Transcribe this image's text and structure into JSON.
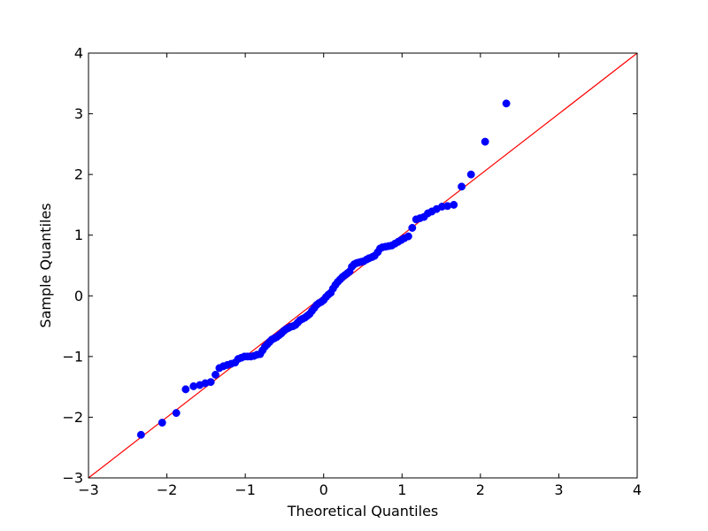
{
  "chart_data": {
    "type": "scatter",
    "title": "",
    "xlabel": "Theoretical Quantiles",
    "ylabel": "Sample Quantiles",
    "xlim": [
      -3,
      4
    ],
    "ylim": [
      -3,
      4
    ],
    "xticks": [
      -3,
      -2,
      -1,
      0,
      1,
      2,
      3,
      4
    ],
    "yticks": [
      -3,
      -2,
      -1,
      0,
      1,
      2,
      3,
      4
    ],
    "xtick_labels": [
      "−3",
      "−2",
      "−1",
      "0",
      "1",
      "2",
      "3",
      "4"
    ],
    "ytick_labels": [
      "−3",
      "−2",
      "−1",
      "0",
      "1",
      "2",
      "3",
      "4"
    ],
    "grid": false,
    "marker_color": "#0000ff",
    "line_color": "#ff0000",
    "reference_line": {
      "x": [
        -3,
        4
      ],
      "y": [
        -3,
        4
      ]
    },
    "points": [
      [
        -2.33,
        -2.29
      ],
      [
        -2.06,
        -2.09
      ],
      [
        -1.88,
        -1.93
      ],
      [
        -1.76,
        -1.54
      ],
      [
        -1.66,
        -1.49
      ],
      [
        -1.58,
        -1.47
      ],
      [
        -1.51,
        -1.44
      ],
      [
        -1.44,
        -1.42
      ],
      [
        -1.38,
        -1.3
      ],
      [
        -1.33,
        -1.19
      ],
      [
        -1.28,
        -1.16
      ],
      [
        -1.23,
        -1.14
      ],
      [
        -1.18,
        -1.12
      ],
      [
        -1.13,
        -1.1
      ],
      [
        -1.09,
        -1.04
      ],
      [
        -1.05,
        -1.02
      ],
      [
        -1.01,
        -1.0
      ],
      [
        -0.97,
        -1.0
      ],
      [
        -0.93,
        -1.0
      ],
      [
        -0.89,
        -0.99
      ],
      [
        -0.85,
        -0.97
      ],
      [
        -0.81,
        -0.96
      ],
      [
        -0.78,
        -0.9
      ],
      [
        -0.75,
        -0.84
      ],
      [
        -0.72,
        -0.8
      ],
      [
        -0.69,
        -0.76
      ],
      [
        -0.66,
        -0.72
      ],
      [
        -0.63,
        -0.7
      ],
      [
        -0.6,
        -0.68
      ],
      [
        -0.57,
        -0.65
      ],
      [
        -0.54,
        -0.62
      ],
      [
        -0.51,
        -0.58
      ],
      [
        -0.48,
        -0.55
      ],
      [
        -0.45,
        -0.53
      ],
      [
        -0.42,
        -0.51
      ],
      [
        -0.39,
        -0.5
      ],
      [
        -0.36,
        -0.48
      ],
      [
        -0.33,
        -0.44
      ],
      [
        -0.3,
        -0.4
      ],
      [
        -0.27,
        -0.38
      ],
      [
        -0.24,
        -0.36
      ],
      [
        -0.21,
        -0.33
      ],
      [
        -0.18,
        -0.3
      ],
      [
        -0.15,
        -0.25
      ],
      [
        -0.12,
        -0.2
      ],
      [
        -0.09,
        -0.15
      ],
      [
        -0.06,
        -0.12
      ],
      [
        -0.03,
        -0.1
      ],
      [
        0.0,
        -0.07
      ],
      [
        0.03,
        -0.02
      ],
      [
        0.06,
        0.02
      ],
      [
        0.09,
        0.05
      ],
      [
        0.12,
        0.12
      ],
      [
        0.15,
        0.18
      ],
      [
        0.18,
        0.23
      ],
      [
        0.21,
        0.27
      ],
      [
        0.24,
        0.31
      ],
      [
        0.27,
        0.34
      ],
      [
        0.3,
        0.37
      ],
      [
        0.33,
        0.4
      ],
      [
        0.36,
        0.48
      ],
      [
        0.39,
        0.52
      ],
      [
        0.42,
        0.54
      ],
      [
        0.45,
        0.55
      ],
      [
        0.48,
        0.56
      ],
      [
        0.51,
        0.57
      ],
      [
        0.55,
        0.6
      ],
      [
        0.58,
        0.62
      ],
      [
        0.62,
        0.64
      ],
      [
        0.65,
        0.66
      ],
      [
        0.69,
        0.72
      ],
      [
        0.72,
        0.78
      ],
      [
        0.75,
        0.8
      ],
      [
        0.79,
        0.81
      ],
      [
        0.83,
        0.82
      ],
      [
        0.87,
        0.83
      ],
      [
        0.91,
        0.86
      ],
      [
        0.95,
        0.89
      ],
      [
        0.99,
        0.92
      ],
      [
        1.03,
        0.95
      ],
      [
        1.08,
        0.98
      ],
      [
        1.13,
        1.12
      ],
      [
        1.18,
        1.26
      ],
      [
        1.23,
        1.28
      ],
      [
        1.28,
        1.3
      ],
      [
        1.33,
        1.36
      ],
      [
        1.38,
        1.39
      ],
      [
        1.44,
        1.43
      ],
      [
        1.51,
        1.47
      ],
      [
        1.58,
        1.48
      ],
      [
        1.66,
        1.5
      ],
      [
        1.76,
        1.8
      ],
      [
        1.88,
        2.0
      ],
      [
        2.06,
        2.54
      ],
      [
        2.33,
        3.17
      ]
    ]
  }
}
